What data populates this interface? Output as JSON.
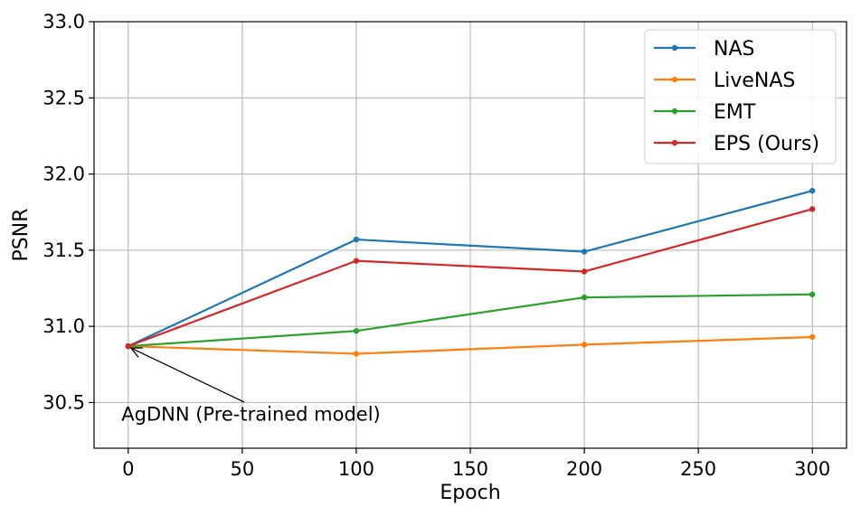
{
  "chart_data": {
    "type": "line",
    "title": "",
    "xlabel": "Epoch",
    "ylabel": "PSNR",
    "xlim": [
      -15,
      315
    ],
    "ylim": [
      30.2,
      33.0
    ],
    "xticks": [
      0,
      50,
      100,
      150,
      200,
      250,
      300
    ],
    "yticks": [
      30.5,
      31.0,
      31.5,
      32.0,
      32.5,
      33.0
    ],
    "ytick_labels": [
      "30.5",
      "31.0",
      "31.5",
      "32.0",
      "32.5",
      "33.0"
    ],
    "grid": true,
    "legend_position": "top-right",
    "x": [
      0,
      100,
      200,
      300
    ],
    "series": [
      {
        "name": "NAS",
        "color": "#1f77b4",
        "values": [
          30.87,
          31.57,
          31.49,
          31.89
        ]
      },
      {
        "name": "LiveNAS",
        "color": "#ff7f0e",
        "values": [
          30.87,
          30.82,
          30.88,
          30.93
        ]
      },
      {
        "name": "EMT",
        "color": "#2ca02c",
        "values": [
          30.87,
          30.97,
          31.19,
          31.21
        ]
      },
      {
        "name": "EPS (Ours)",
        "color": "#d62728",
        "values": [
          30.87,
          31.43,
          31.36,
          31.77
        ]
      }
    ],
    "annotation": {
      "text": "AgDNN (Pre-trained model)",
      "point": [
        0,
        30.87
      ],
      "text_anchor": [
        -3,
        30.38
      ]
    }
  }
}
